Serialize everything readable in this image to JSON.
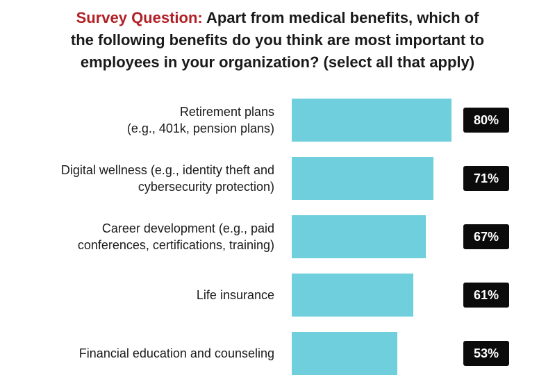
{
  "title": {
    "prefix": "Survey Question:",
    "line1_rest": " Apart from medical benefits, which of",
    "line2": "the following benefits do you think are most important to",
    "line3": "employees in your organization? (select all that apply)"
  },
  "colors": {
    "bar": "#6fcfdc",
    "title_prefix": "#b22025",
    "badge": "#0b0b0b"
  },
  "chart_data": {
    "type": "bar",
    "orientation": "horizontal",
    "categories": [
      [
        "Retirement plans",
        "(e.g., 401k, pension plans)"
      ],
      [
        "Digital wellness (e.g., identity theft and",
        "cybersecurity protection)"
      ],
      [
        "Career development (e.g., paid",
        "conferences, certifications, training)"
      ],
      [
        "Life insurance"
      ],
      [
        "Financial education and counseling"
      ]
    ],
    "values": [
      80,
      71,
      67,
      61,
      53
    ],
    "value_labels": [
      "80%",
      "71%",
      "67%",
      "61%",
      "53%"
    ],
    "xlim": [
      0,
      100
    ],
    "xlabel": "",
    "ylabel": "",
    "grid": false
  }
}
